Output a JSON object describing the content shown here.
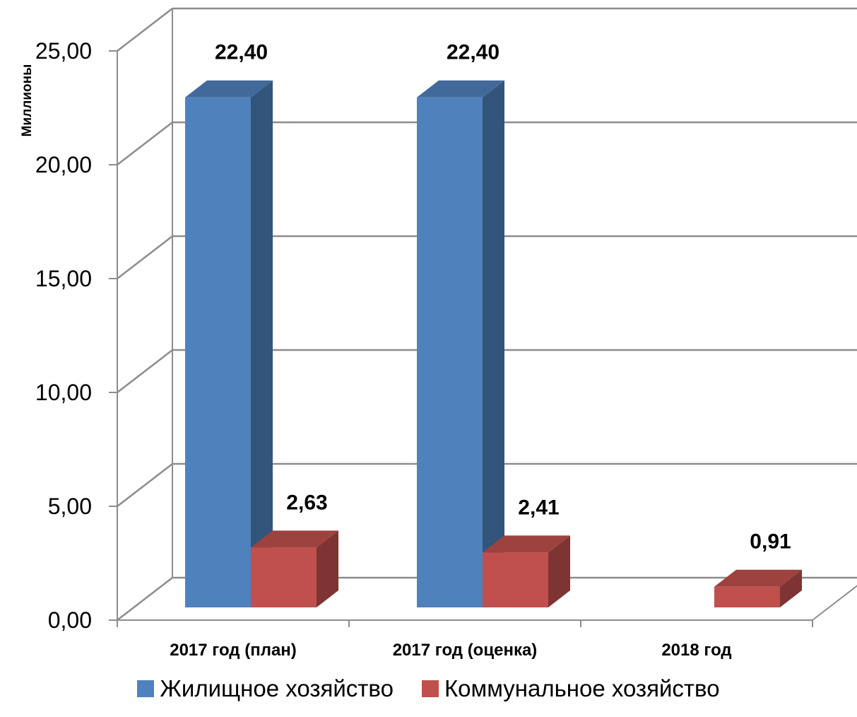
{
  "chart_data": {
    "type": "bar",
    "ylabel": "Миллионы",
    "xlabel": "",
    "ylim": [
      0,
      25
    ],
    "y_ticks": [
      "0,00",
      "5,00",
      "10,00",
      "15,00",
      "20,00",
      "25,00"
    ],
    "categories": [
      "2017 год (план)",
      "2017 год (оценка)",
      "2018 год"
    ],
    "series": [
      {
        "name": "Жилищное хозяйство",
        "color": "#4f81bd",
        "values": [
          22.4,
          22.4,
          0
        ],
        "labels": [
          "22,40",
          "22,40",
          ""
        ]
      },
      {
        "name": "Коммунальное хозяйство",
        "color": "#c0504d",
        "values": [
          2.63,
          2.41,
          0.91
        ],
        "labels": [
          "2,63",
          "2,41",
          "0,91"
        ]
      }
    ],
    "grid": true,
    "legend_position": "bottom",
    "style": "3d-column"
  }
}
